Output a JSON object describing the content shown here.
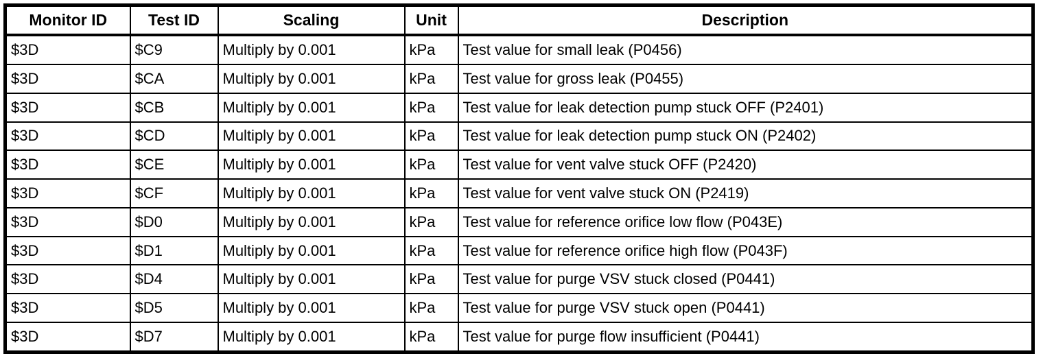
{
  "table": {
    "columns": {
      "monitor_id": "Monitor ID",
      "test_id": "Test ID",
      "scaling": "Scaling",
      "unit": "Unit",
      "description": "Description"
    },
    "rows": [
      {
        "monitor_id": "$3D",
        "test_id": "$C9",
        "scaling": "Multiply by 0.001",
        "unit": "kPa",
        "description": "Test value for small leak (P0456)"
      },
      {
        "monitor_id": "$3D",
        "test_id": "$CA",
        "scaling": "Multiply by 0.001",
        "unit": "kPa",
        "description": "Test value for gross leak (P0455)"
      },
      {
        "monitor_id": "$3D",
        "test_id": "$CB",
        "scaling": "Multiply by 0.001",
        "unit": "kPa",
        "description": "Test value for leak detection pump stuck OFF (P2401)"
      },
      {
        "monitor_id": "$3D",
        "test_id": "$CD",
        "scaling": "Multiply by 0.001",
        "unit": "kPa",
        "description": "Test value for leak detection pump stuck ON (P2402)"
      },
      {
        "monitor_id": "$3D",
        "test_id": "$CE",
        "scaling": "Multiply by 0.001",
        "unit": "kPa",
        "description": "Test value for vent valve stuck OFF (P2420)"
      },
      {
        "monitor_id": "$3D",
        "test_id": "$CF",
        "scaling": "Multiply by 0.001",
        "unit": "kPa",
        "description": "Test value for vent valve stuck ON (P2419)"
      },
      {
        "monitor_id": "$3D",
        "test_id": "$D0",
        "scaling": "Multiply by 0.001",
        "unit": "kPa",
        "description": "Test value for reference orifice low flow (P043E)"
      },
      {
        "monitor_id": "$3D",
        "test_id": "$D1",
        "scaling": "Multiply by 0.001",
        "unit": "kPa",
        "description": "Test value for reference orifice high flow (P043F)"
      },
      {
        "monitor_id": "$3D",
        "test_id": "$D4",
        "scaling": "Multiply by 0.001",
        "unit": "kPa",
        "description": "Test value for purge VSV stuck closed (P0441)"
      },
      {
        "monitor_id": "$3D",
        "test_id": "$D5",
        "scaling": "Multiply by 0.001",
        "unit": "kPa",
        "description": "Test value for purge VSV stuck open (P0441)"
      },
      {
        "monitor_id": "$3D",
        "test_id": "$D7",
        "scaling": "Multiply by 0.001",
        "unit": "kPa",
        "description": "Test value for purge flow insufficient (P0441)"
      }
    ],
    "border_color": "#000000",
    "background_color": "#ffffff"
  }
}
